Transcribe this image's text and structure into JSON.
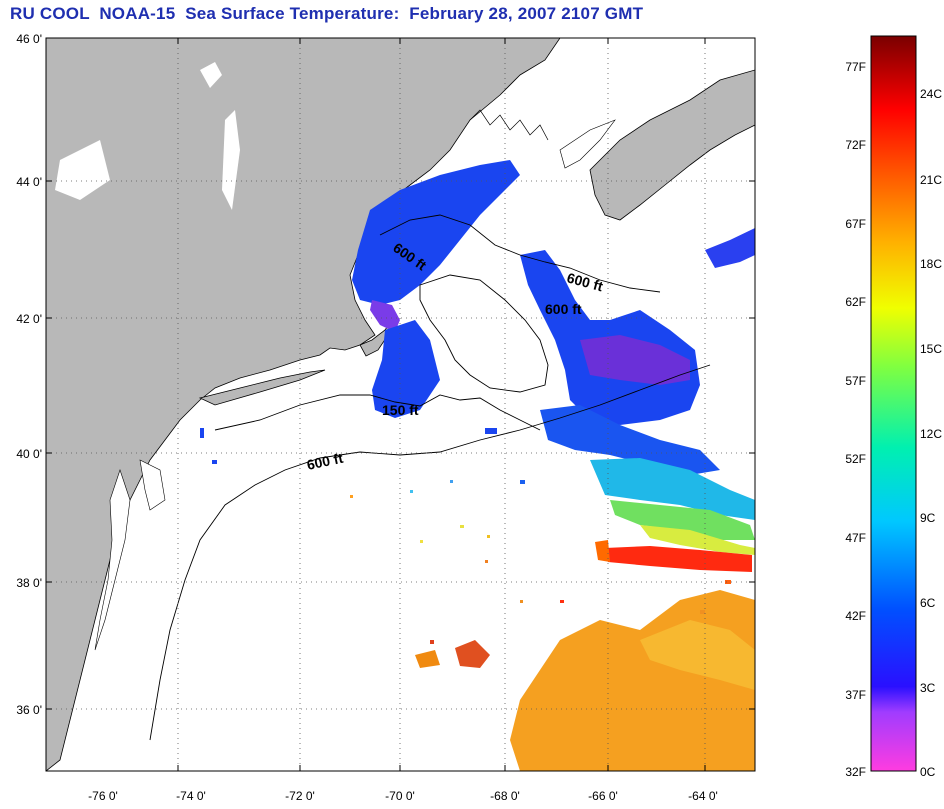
{
  "title": "RU COOL  NOAA-15  Sea Surface Temperature:  February 28, 2007 2107 GMT",
  "latitude_labels": [
    "46 0'",
    "44 0'",
    "42 0'",
    "40 0'",
    "38 0'",
    "36 0'"
  ],
  "longitude_labels": [
    "-76 0'",
    "-74 0'",
    "-72 0'",
    "-70 0'",
    "-68 0'",
    "-66 0'",
    "-64 0'"
  ],
  "contour_labels": [
    "600 ft",
    "600 ft",
    "600 ft",
    "150 ft",
    "600 ft"
  ],
  "colorbar": {
    "fahrenheit_labels": [
      "77F",
      "72F",
      "67F",
      "62F",
      "57F",
      "52F",
      "47F",
      "42F",
      "37F",
      "32F"
    ],
    "celsius_labels": [
      "24C",
      "21C",
      "18C",
      "15C",
      "12C",
      "9C",
      "6C",
      "3C",
      "0C"
    ]
  },
  "colors": {
    "title": "#1f2fb0",
    "land": "#b8b8b8",
    "sea_no_data": "#ffffff"
  }
}
